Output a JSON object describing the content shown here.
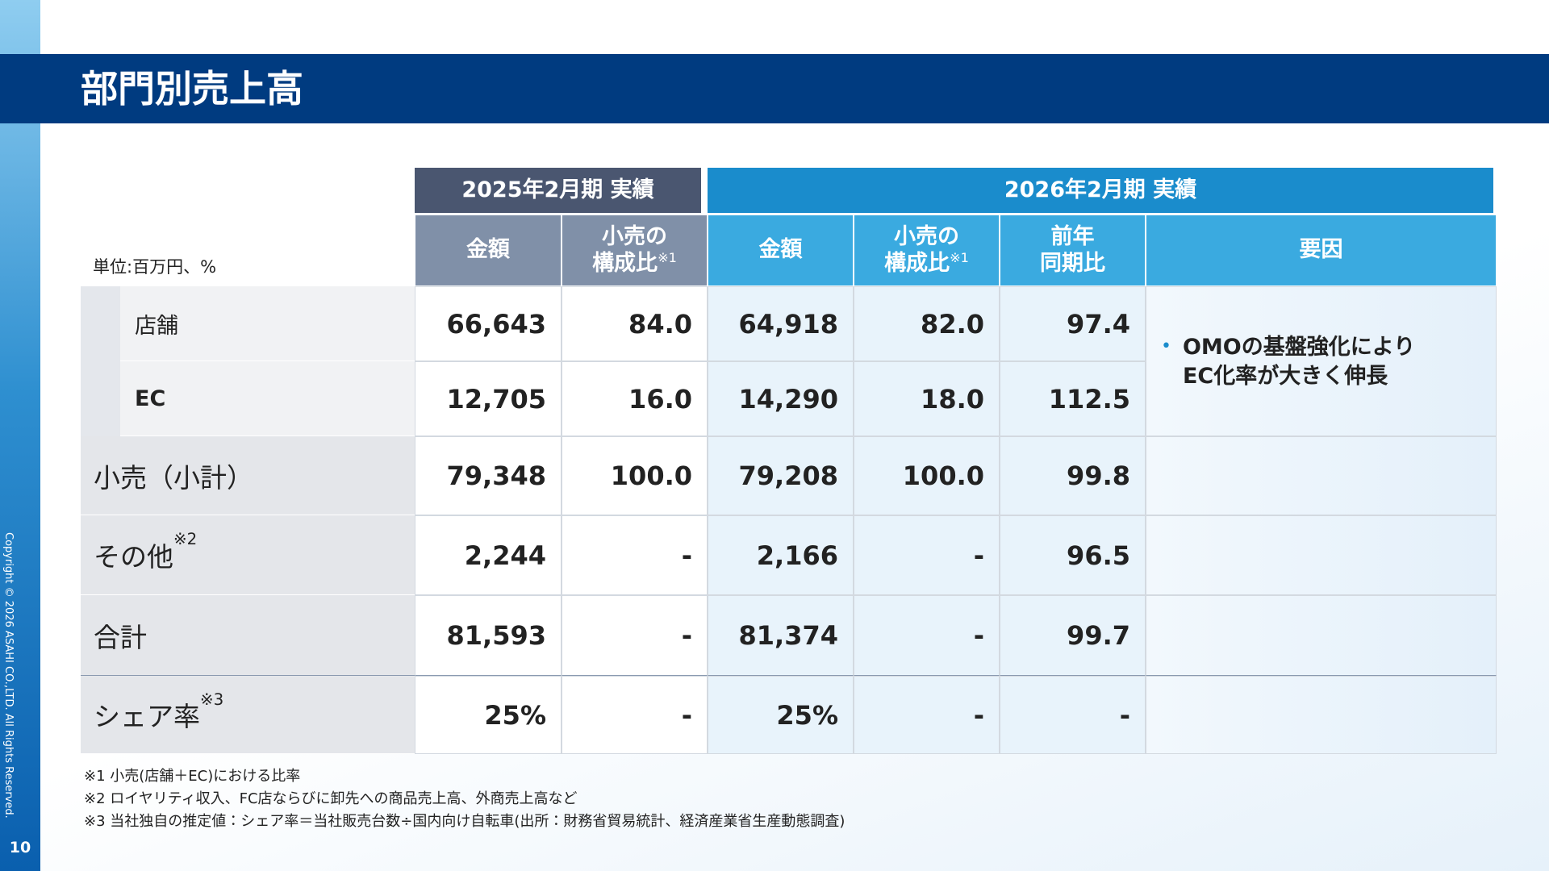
{
  "header": {
    "title": "部門別売上高",
    "page_number": "10",
    "copyright": "Copyright © 2026 ASAHI CO.,LTD. All Rights Reserved."
  },
  "table": {
    "unit": "単位:百万円、%",
    "groups": [
      "2025年2月期 実績",
      "2026年2月期 実績"
    ],
    "columns": [
      {
        "lines": [
          "金額"
        ]
      },
      {
        "lines": [
          "小売の",
          "構成比"
        ],
        "note": "※1"
      },
      {
        "lines": [
          "金額"
        ]
      },
      {
        "lines": [
          "小売の",
          "構成比"
        ],
        "note": "※1"
      },
      {
        "lines": [
          "前年",
          "同期比"
        ]
      },
      {
        "lines": [
          "要因"
        ]
      }
    ],
    "rows": [
      {
        "label": "店舗",
        "values": [
          "66,643",
          "84.0",
          "64,918",
          "82.0",
          "97.4"
        ]
      },
      {
        "label": "EC",
        "values": [
          "12,705",
          "16.0",
          "14,290",
          "18.0",
          "112.5"
        ]
      },
      {
        "label": "小売（小計）",
        "values": [
          "79,348",
          "100.0",
          "79,208",
          "100.0",
          "99.8"
        ]
      },
      {
        "label": "その他",
        "note": "※2",
        "values": [
          "2,244",
          "-",
          "2,166",
          "-",
          "96.5"
        ]
      },
      {
        "label": "合計",
        "values": [
          "81,593",
          "-",
          "81,374",
          "-",
          "99.7"
        ]
      },
      {
        "label": "シェア率",
        "note": "※3",
        "values": [
          "25%",
          "-",
          "25%",
          "-",
          "-"
        ]
      }
    ],
    "factor": {
      "bullet": "•",
      "lines": [
        "OMOの基盤強化により",
        "EC化率が大きく伸長"
      ]
    }
  },
  "footnotes": [
    "※1 小売(店舗＋EC)における比率",
    "※2 ロイヤリティ収入、FC店ならびに卸先への商品売上高、外商売上高など",
    "※3 当社独自の推定値：シェア率＝当社販売台数÷国内向け自転車(出所：財務省貿易統計、経済産業省生産動態調査)"
  ]
}
